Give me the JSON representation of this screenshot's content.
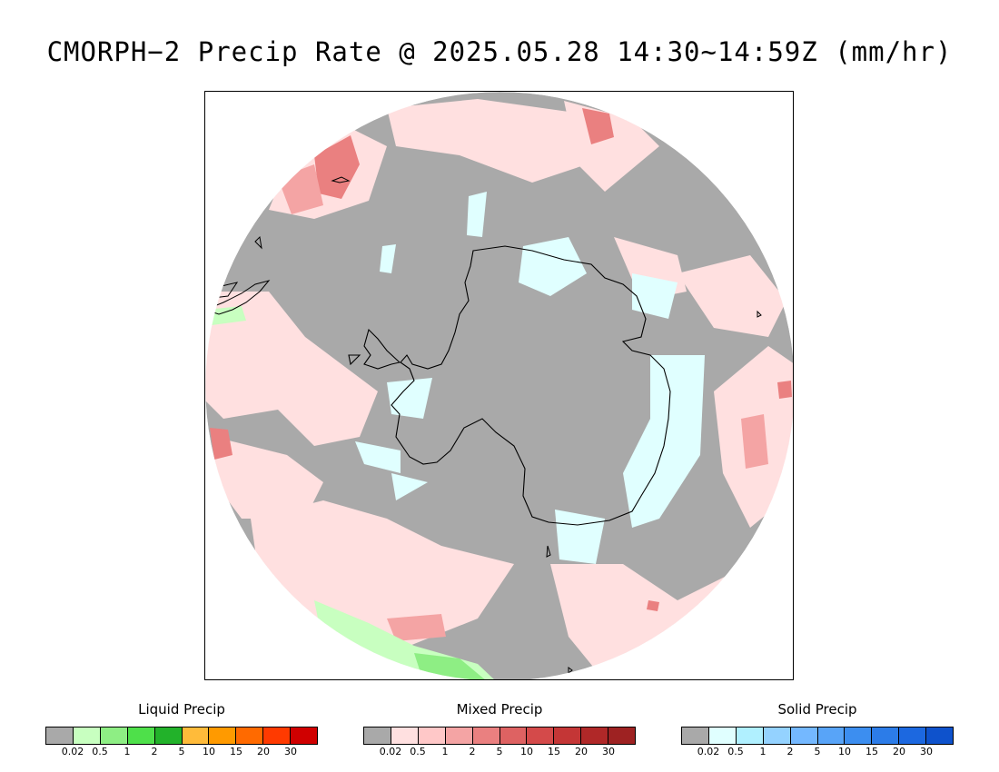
{
  "title": "CMORPH−2 Precip Rate @ 2025.05.28 14:30~14:59Z (mm/hr)",
  "map": {
    "projection": "south-polar-stereographic",
    "background_color": "#a9a9a9",
    "coastline_color": "#000000",
    "region_shown": "Antarctica and Southern Ocean"
  },
  "legends": [
    {
      "id": "liquid",
      "title": "Liquid Precip",
      "colors": [
        "#a9a9a9",
        "#c8ffc0",
        "#8eee84",
        "#4ee04a",
        "#22b22a",
        "#ffbb3a",
        "#ff9a00",
        "#ff6a00",
        "#ff3a00",
        "#d00000"
      ],
      "ticks": [
        "0.02",
        "0.5",
        "1",
        "2",
        "5",
        "10",
        "15",
        "20",
        "30"
      ]
    },
    {
      "id": "mixed",
      "title": "Mixed Precip",
      "colors": [
        "#a9a9a9",
        "#ffe0e0",
        "#ffc8c8",
        "#f4a4a4",
        "#ea8080",
        "#de6262",
        "#d44a4a",
        "#c43636",
        "#b02828",
        "#9e2222"
      ],
      "ticks": [
        "0.02",
        "0.5",
        "1",
        "2",
        "5",
        "10",
        "15",
        "20",
        "30"
      ]
    },
    {
      "id": "solid",
      "title": "Solid Precip",
      "colors": [
        "#a9a9a9",
        "#e0ffff",
        "#b0f0ff",
        "#94d2ff",
        "#74b8ff",
        "#58a4f8",
        "#3c8ef0",
        "#2c7ce8",
        "#1c68e0",
        "#0e52cc"
      ],
      "ticks": [
        "0.02",
        "0.5",
        "1",
        "2",
        "5",
        "10",
        "15",
        "20",
        "30"
      ]
    }
  ]
}
